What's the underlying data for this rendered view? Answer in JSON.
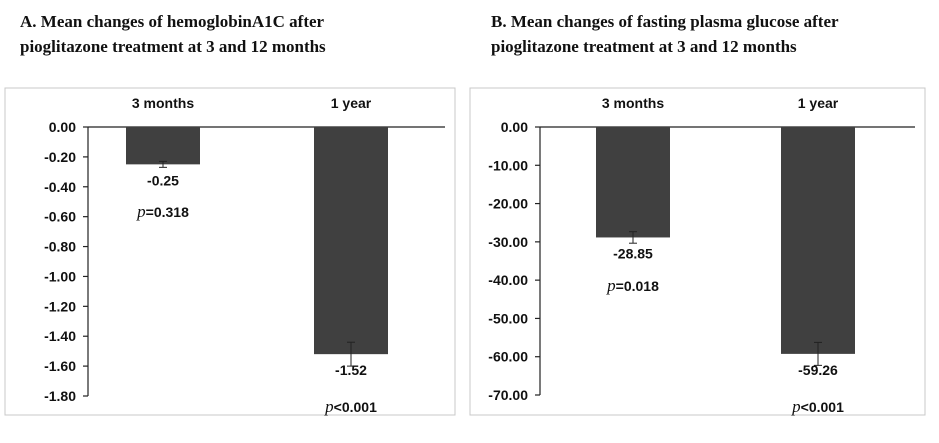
{
  "charts": [
    {
      "id": "a",
      "title_lines": [
        "A. Mean changes of hemoglobinA1C after",
        "pioglitazone treatment at 3 and 12 months"
      ],
      "chart_data": {
        "type": "bar",
        "title": "A. Mean changes of hemoglobinA1C after pioglitazone treatment at 3 and 12 months",
        "categories": [
          "3 months",
          "1 year"
        ],
        "values": [
          -0.25,
          -1.52
        ],
        "value_labels": [
          "-0.25",
          "-1.52"
        ],
        "error": [
          0.02,
          0.08
        ],
        "p_values": [
          {
            "p": "p",
            "rest": "=0.318"
          },
          {
            "p": "p",
            "rest": "<0.001"
          }
        ],
        "ylim": [
          -1.8,
          0
        ],
        "yticks": [
          0,
          -0.2,
          -0.4,
          -0.6,
          -0.8,
          -1.0,
          -1.2,
          -1.4,
          -1.6,
          -1.8
        ],
        "ytick_labels": [
          "0.00",
          "-0.20",
          "-0.40",
          "-0.60",
          "-0.80",
          "-1.00",
          "-1.20",
          "-1.40",
          "-1.60",
          "-1.80"
        ],
        "category_axis": "top",
        "grid": false,
        "bar_color": "#404040"
      }
    },
    {
      "id": "b",
      "title_lines": [
        "B. Mean changes of fasting plasma glucose after",
        "pioglitazone treatment at 3 and 12 months"
      ],
      "chart_data": {
        "type": "bar",
        "title": "B. Mean changes of fasting plasma glucose after pioglitazone treatment at 3 and 12 months",
        "categories": [
          "3 months",
          "1 year"
        ],
        "values": [
          -28.85,
          -59.26
        ],
        "value_labels": [
          "-28.85",
          "-59.26"
        ],
        "error": [
          1.5,
          3.0
        ],
        "p_values": [
          {
            "p": "p",
            "rest": "=0.018"
          },
          {
            "p": "p",
            "rest": "<0.001"
          }
        ],
        "ylim": [
          -70,
          0
        ],
        "yticks": [
          0,
          -10,
          -20,
          -30,
          -40,
          -50,
          -60,
          -70
        ],
        "ytick_labels": [
          "0.00",
          "-10.00",
          "-20.00",
          "-30.00",
          "-40.00",
          "-50.00",
          "-60.00",
          "-70.00"
        ],
        "category_axis": "top",
        "grid": false,
        "bar_color": "#404040"
      }
    }
  ]
}
